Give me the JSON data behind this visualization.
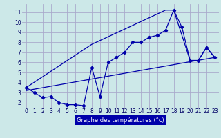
{
  "xlabel": "Graphe des températures (°c)",
  "background_color": "#cce8e8",
  "grid_color": "#aaaacc",
  "line_color": "#0000aa",
  "xlim": [
    -0.5,
    23.5
  ],
  "ylim": [
    1.5,
    11.8
  ],
  "xticks": [
    0,
    1,
    2,
    3,
    4,
    5,
    6,
    7,
    8,
    9,
    10,
    11,
    12,
    13,
    14,
    15,
    16,
    17,
    18,
    19,
    20,
    21,
    22,
    23
  ],
  "yticks": [
    2,
    3,
    4,
    5,
    6,
    7,
    8,
    9,
    10,
    11
  ],
  "line1_x": [
    0,
    1,
    2,
    3,
    4,
    5,
    6,
    7,
    8,
    9,
    10,
    11,
    12,
    13,
    14,
    15,
    16,
    17,
    18,
    19,
    20,
    21,
    22,
    23
  ],
  "line1_y": [
    3.5,
    3.0,
    2.5,
    2.6,
    2.0,
    1.8,
    1.8,
    1.7,
    5.5,
    2.6,
    6.0,
    6.5,
    7.0,
    8.0,
    8.0,
    8.5,
    8.7,
    9.2,
    11.2,
    9.5,
    6.2,
    6.2,
    7.5,
    6.5
  ],
  "line2_x": [
    0,
    8,
    17,
    18,
    20,
    21,
    22,
    23
  ],
  "line2_y": [
    3.5,
    7.8,
    11.2,
    11.2,
    6.2,
    6.2,
    7.5,
    6.5
  ],
  "line3_x": [
    0,
    23
  ],
  "line3_y": [
    3.2,
    6.5
  ],
  "xlabel_bg": "#0000aa",
  "xlabel_fg": "#ffffff",
  "xlabel_fontsize": 6,
  "tick_fontsize": 5.5
}
